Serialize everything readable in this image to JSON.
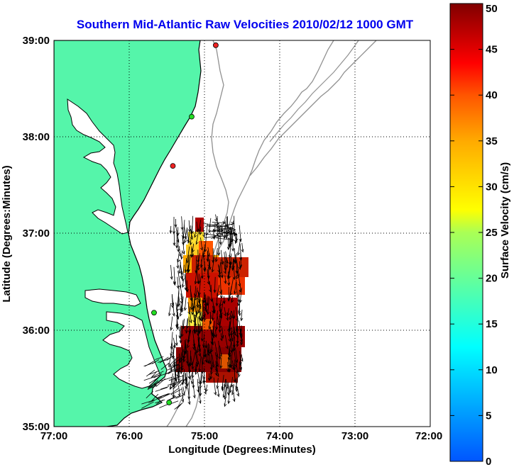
{
  "chart_data": {
    "type": "heatmap",
    "title": "Southern Mid-Atlantic Raw Velocities 2010/02/12 1000 GMT",
    "xlabel": "Longitude (Degrees:Minutes)",
    "ylabel": "Latitude (Degrees:Minutes)",
    "x_ticks": [
      "77:00",
      "76:00",
      "75:00",
      "74:00",
      "73:00",
      "72:00"
    ],
    "y_ticks": [
      "39:00",
      "38:00",
      "37:00",
      "36:00",
      "35:00"
    ],
    "xlim_deg_west": [
      77,
      72
    ],
    "ylim_deg_north": [
      35,
      39
    ],
    "grid": true,
    "colorbar": {
      "label": "Surface Velocity (cm/s)",
      "range": [
        0,
        50
      ],
      "ticks": [
        "50",
        "45",
        "40",
        "35",
        "30",
        "25",
        "20",
        "15",
        "10",
        "5",
        "0"
      ],
      "colormap": "jet"
    },
    "colors": {
      "land": "#55f5aa",
      "coastline": "#000000",
      "bathymetry": "#909090",
      "title": "#0000ee",
      "station_green": "#22dd22",
      "station_red": "#ee2222",
      "velocity_high": "#8b0000",
      "velocity_mid": "#ff8800",
      "velocity_low": "#ffff33"
    },
    "stations": [
      {
        "lon": 74.85,
        "lat": 38.95,
        "color": "red"
      },
      {
        "lon": 75.17,
        "lat": 38.21,
        "color": "green"
      },
      {
        "lon": 75.42,
        "lat": 37.7,
        "color": "red"
      },
      {
        "lon": 75.67,
        "lat": 36.18,
        "color": "green"
      },
      {
        "lon": 75.47,
        "lat": 35.25,
        "color": "green"
      }
    ],
    "velocity_field": {
      "region_lon_range": [
        74.5,
        75.7
      ],
      "region_lat_range": [
        35.4,
        37.2
      ],
      "max_speed": 50,
      "min_speed": 25,
      "dominant_direction": "south"
    }
  }
}
